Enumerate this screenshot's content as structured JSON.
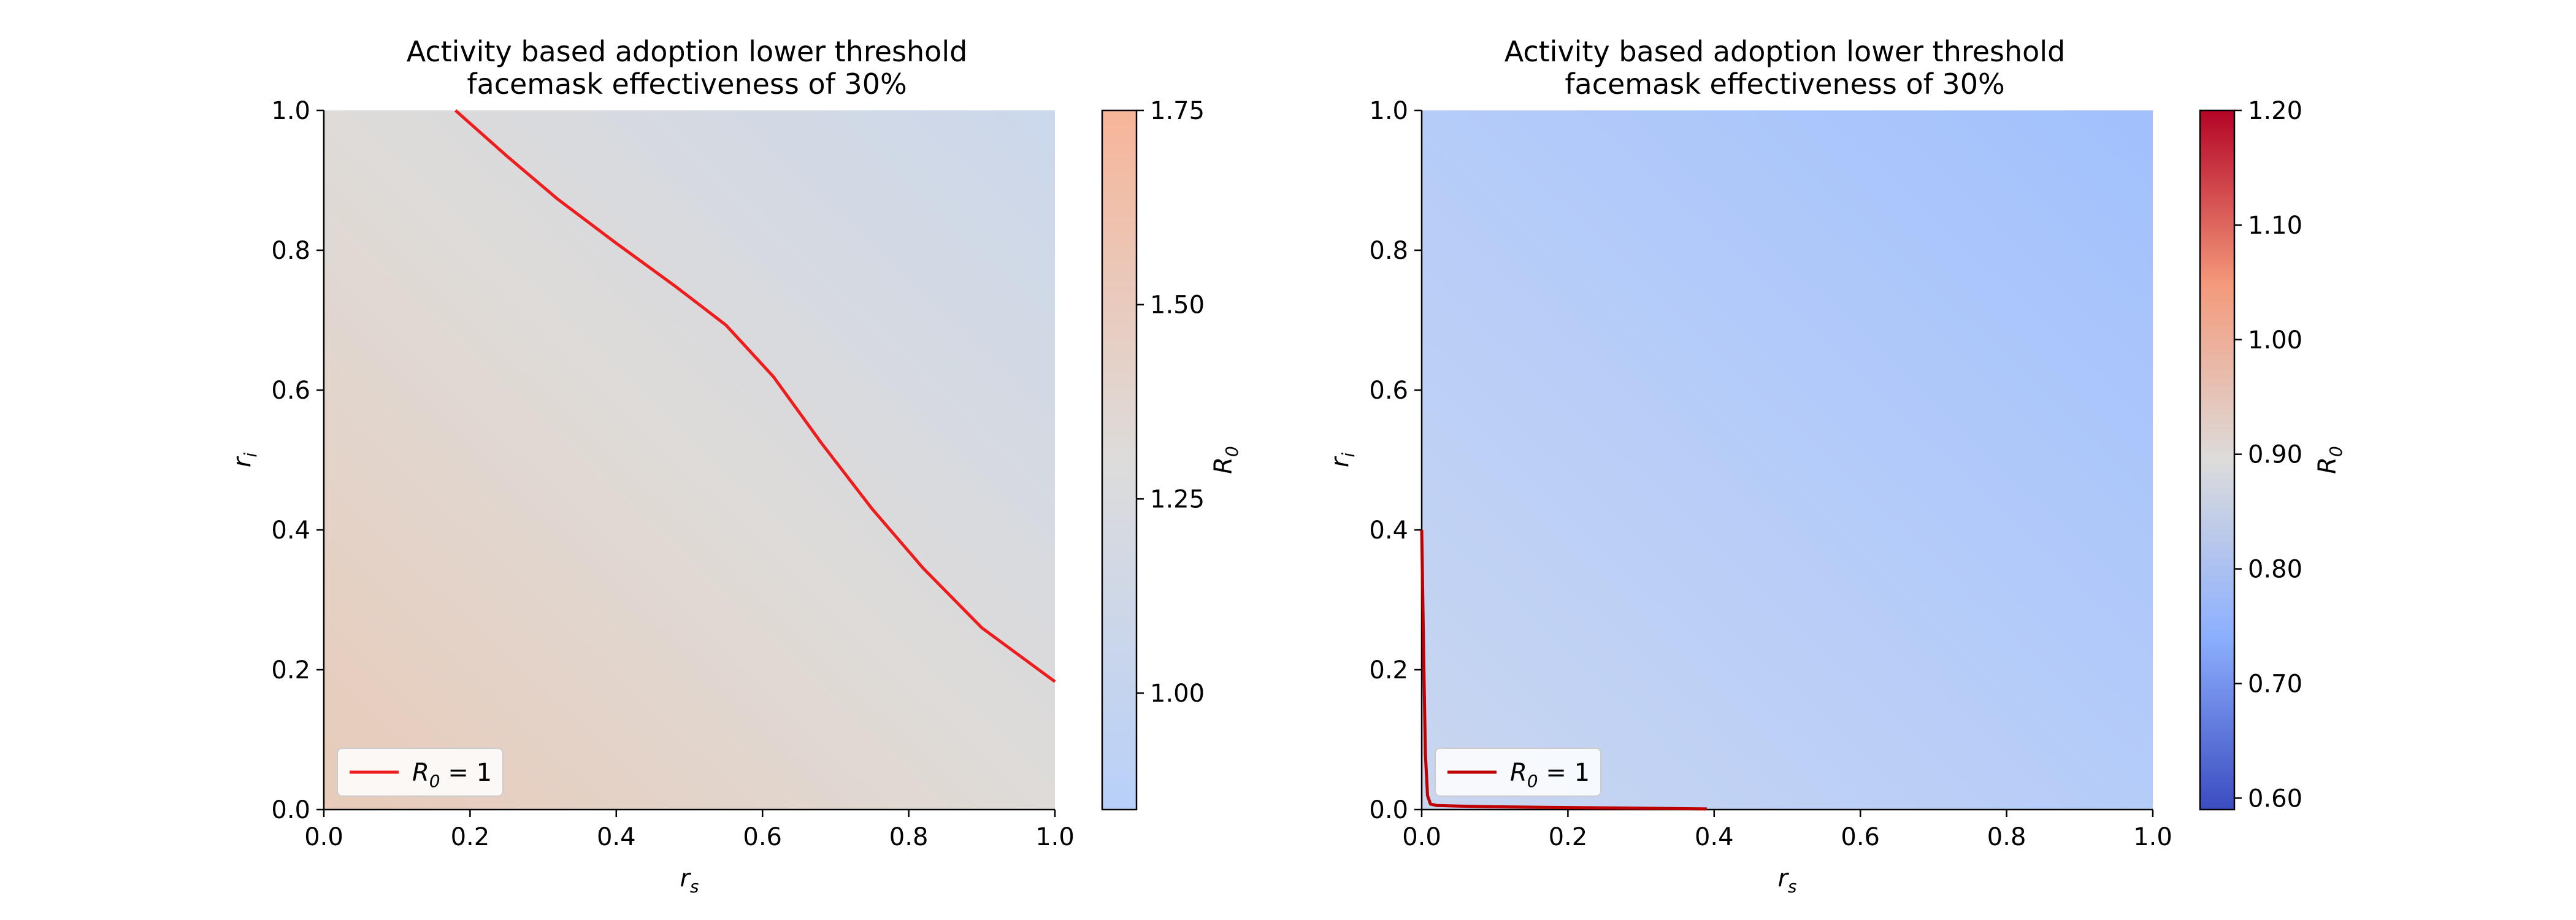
{
  "chart_data": [
    {
      "type": "heatmap",
      "title": "Activity based adoption lower threshold",
      "subtitle": "facemask effectiveness of 30%",
      "xlabel": "r",
      "xlabel_sub": "s",
      "ylabel": "r",
      "ylabel_sub": "i",
      "xlim": [
        0,
        1
      ],
      "ylim": [
        0,
        1
      ],
      "xticks": [
        "0.0",
        "0.2",
        "0.4",
        "0.6",
        "0.8",
        "1.0"
      ],
      "yticks": [
        "0.0",
        "0.2",
        "0.4",
        "0.6",
        "0.8",
        "1.0"
      ],
      "colorbar": {
        "label": "R",
        "label_sub": "0",
        "range": [
          0.85,
          1.75
        ],
        "ticks": [
          "1.00",
          "1.25",
          "1.50",
          "1.75"
        ],
        "tick_values": [
          1.0,
          1.25,
          1.5,
          1.75
        ]
      },
      "corner_colors": {
        "bottom_left": "#e8cbb9",
        "top_left": "#dedbd8",
        "bottom_right": "#dedbd8",
        "top_right": "#cbd8ec"
      },
      "grid": false,
      "legend": {
        "placement": "lower-left",
        "label_main": "R",
        "label_sub": "0",
        "label_rest": " = 1"
      },
      "series": [
        {
          "color": "#ee1c1c",
          "x": [
            0.18,
            0.25,
            0.32,
            0.4,
            0.48,
            0.55,
            0.615,
            0.68,
            0.75,
            0.82,
            0.9,
            1.0
          ],
          "y": [
            1.0,
            0.935,
            0.873,
            0.81,
            0.749,
            0.693,
            0.619,
            0.525,
            0.43,
            0.345,
            0.26,
            0.183
          ]
        }
      ]
    },
    {
      "type": "heatmap",
      "title": "Activity based adoption lower threshold",
      "subtitle": "facemask effectiveness of 30%",
      "xlabel": "r",
      "xlabel_sub": "s",
      "ylabel": "r",
      "ylabel_sub": "i",
      "xlim": [
        0,
        1
      ],
      "ylim": [
        0,
        1
      ],
      "xticks": [
        "0.0",
        "0.2",
        "0.4",
        "0.6",
        "0.8",
        "1.0"
      ],
      "yticks": [
        "0.0",
        "0.2",
        "0.4",
        "0.6",
        "0.8",
        "1.0"
      ],
      "colorbar": {
        "label": "R",
        "label_sub": "0",
        "range": [
          0.59,
          1.2
        ],
        "ticks": [
          "0.60",
          "0.70",
          "0.80",
          "0.90",
          "1.00",
          "1.10",
          "1.20"
        ],
        "tick_values": [
          0.6,
          0.7,
          0.8,
          0.9,
          1.0,
          1.1,
          1.2
        ]
      },
      "corner_colors": {
        "bottom_left": "#c9d6ef",
        "top_left": "#b5ccf9",
        "bottom_right": "#b5ccf9",
        "top_right": "#a1c0fc"
      },
      "grid": false,
      "legend": {
        "placement": "lower-left",
        "label_main": "R",
        "label_sub": "0",
        "label_rest": " = 1"
      },
      "series": [
        {
          "color": "#c00000",
          "x": [
            0.0,
            0.003,
            0.005,
            0.008,
            0.012,
            0.02,
            0.05,
            0.1,
            0.2,
            0.3,
            0.39
          ],
          "y": [
            0.4,
            0.2,
            0.08,
            0.02,
            0.008,
            0.006,
            0.005,
            0.004,
            0.003,
            0.002,
            0.001
          ]
        }
      ]
    }
  ]
}
